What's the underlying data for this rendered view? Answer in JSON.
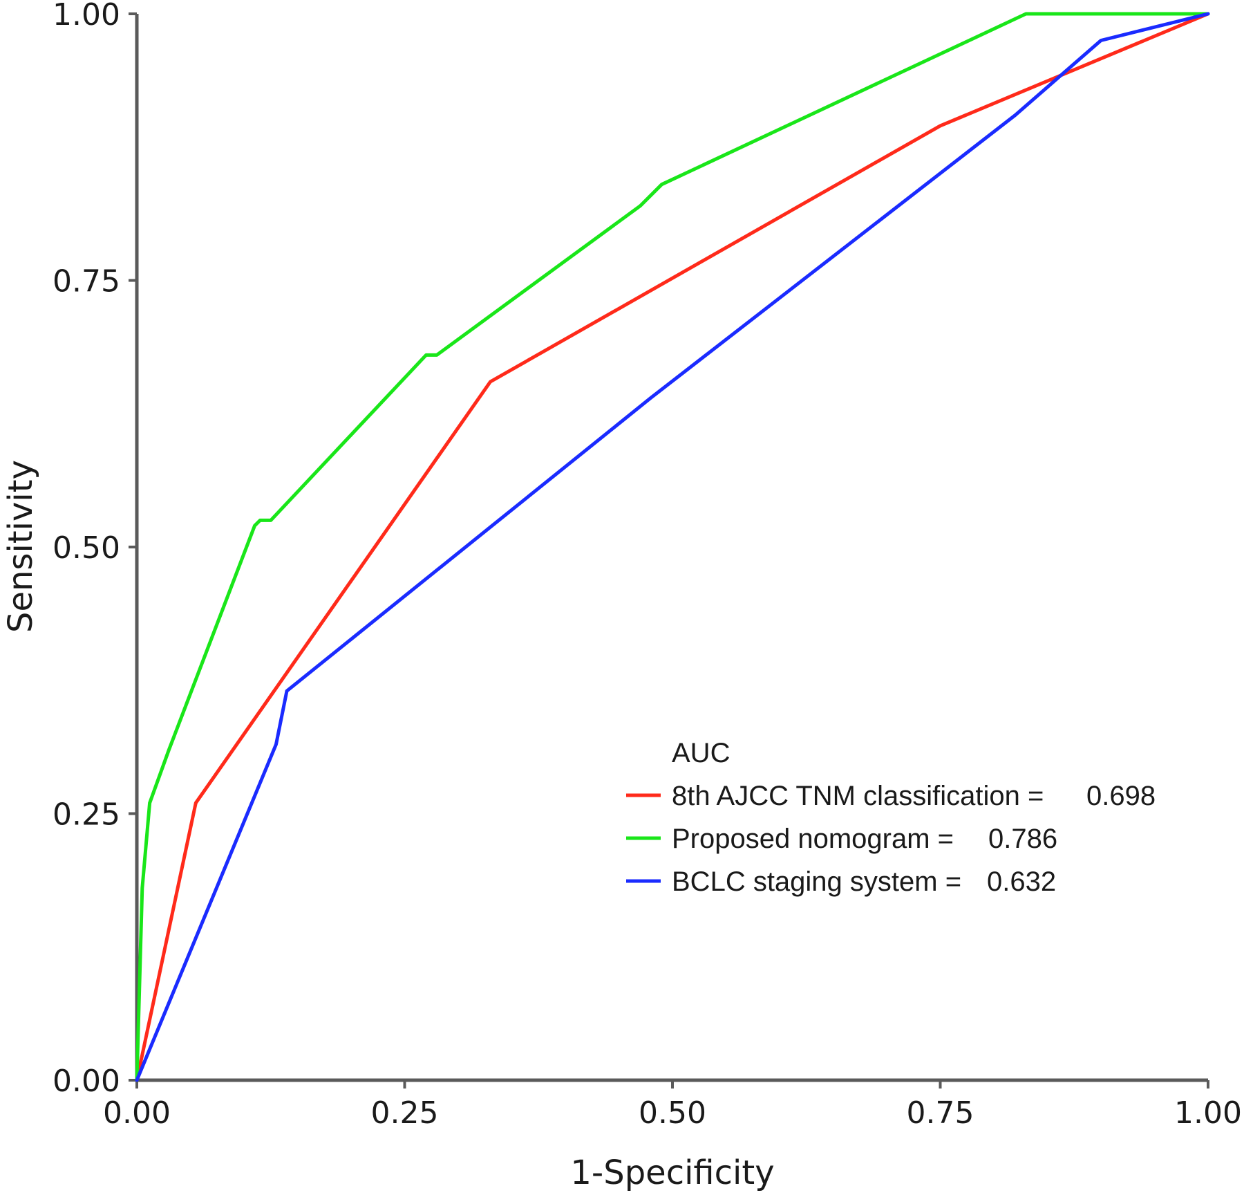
{
  "chart_data": {
    "type": "line",
    "xlabel": "1-Specificity",
    "ylabel": "Sensitivity",
    "xlim": [
      0,
      1
    ],
    "ylim": [
      0,
      1
    ],
    "xticks": [
      "0.00",
      "0.25",
      "0.50",
      "0.75",
      "1.00"
    ],
    "yticks": [
      "0.00",
      "0.25",
      "0.50",
      "0.75",
      "1.00"
    ],
    "grid": false,
    "legend": {
      "title": "AUC",
      "placement": "bottom-right",
      "entries": [
        {
          "label": "8th AJCC TNM classification =",
          "value": "0.698"
        },
        {
          "label": "Proposed nomogram =",
          "value": "0.786"
        },
        {
          "label": "BCLC staging system =",
          "value": "0.632"
        }
      ]
    },
    "series": [
      {
        "color": "#ff2a1a",
        "x": [
          0,
          0.055,
          0.33,
          0.75,
          1.0
        ],
        "y": [
          0,
          0.26,
          0.655,
          0.895,
          1.0
        ]
      },
      {
        "color": "#19e619",
        "x": [
          0,
          0.005,
          0.012,
          0.03,
          0.11,
          0.115,
          0.125,
          0.27,
          0.28,
          0.47,
          0.49,
          0.83,
          1.0
        ],
        "y": [
          0,
          0.18,
          0.26,
          0.31,
          0.52,
          0.525,
          0.525,
          0.68,
          0.68,
          0.82,
          0.84,
          1.0,
          1.0
        ]
      },
      {
        "color": "#1a2bff",
        "x": [
          0,
          0.13,
          0.14,
          0.48,
          0.82,
          0.9,
          1.0
        ],
        "y": [
          0,
          0.315,
          0.365,
          0.64,
          0.905,
          0.975,
          1.0
        ]
      }
    ]
  }
}
